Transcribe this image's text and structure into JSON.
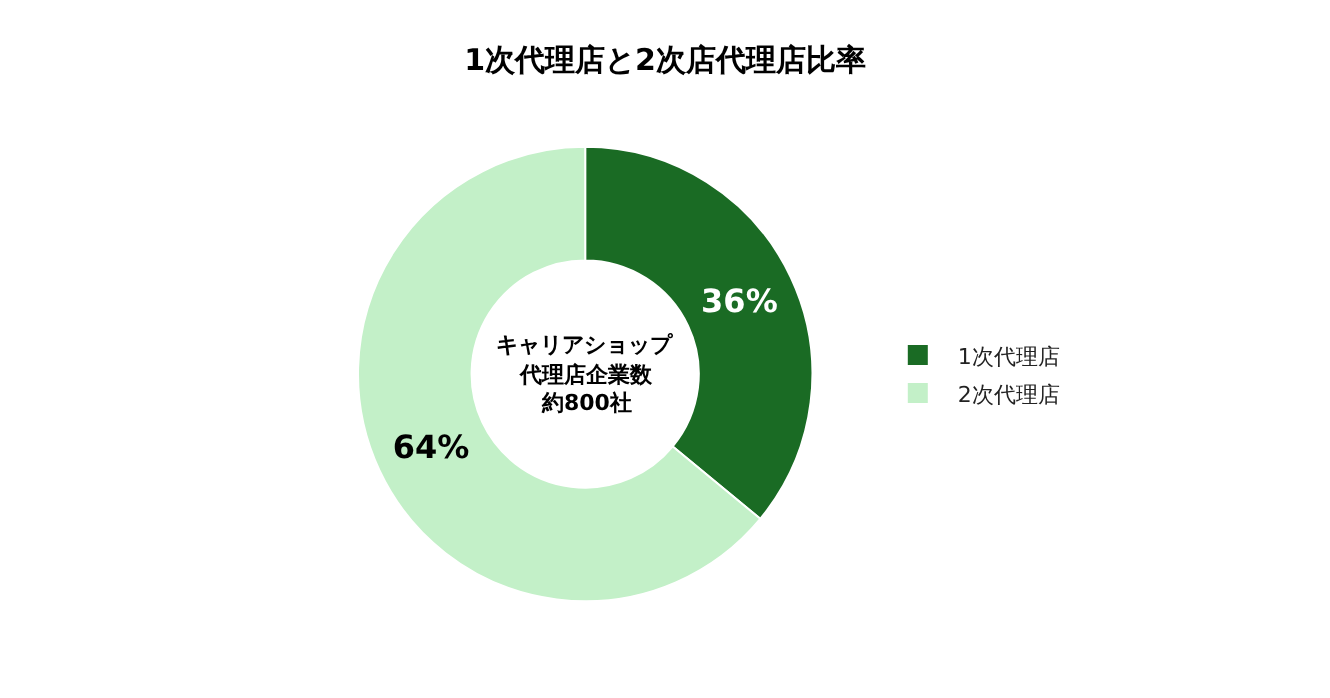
{
  "chart_data": {
    "type": "donut",
    "title": "1次代理店と2次店代理店比率",
    "categories": [
      "1次代理店",
      "2次代理店"
    ],
    "values": [
      36,
      64
    ],
    "value_labels": [
      "36%",
      "64%"
    ],
    "colors": [
      "#1a6b24",
      "#c3f0c8"
    ],
    "annotations": [
      "キャリアショップ",
      "代理店企業数",
      "約800社"
    ],
    "legend": "right"
  }
}
